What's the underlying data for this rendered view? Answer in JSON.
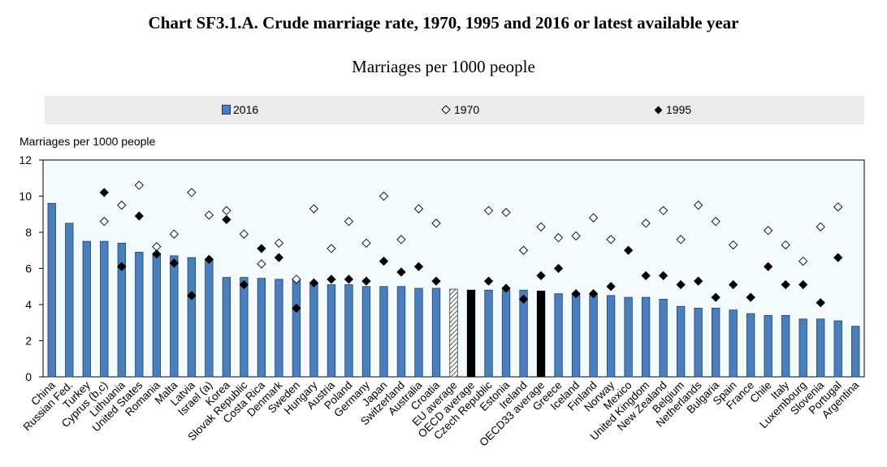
{
  "chart_data": {
    "type": "bar",
    "title": "Chart SF3.1.A. Crude marriage rate, 1970, 1995 and 2016 or latest available year",
    "subtitle": "Marriages per 1000 people",
    "ylabel": "Marriages per 1000 people",
    "ylim": [
      0,
      12
    ],
    "yticks": [
      0,
      2,
      4,
      6,
      8,
      10,
      12
    ],
    "grid": false,
    "legend_position": "top",
    "colors": {
      "bar": "#4a7fbf",
      "bar_border": "#1f3f6a",
      "oecd_bar": "#000000",
      "eu_bar_hatch": "#555555",
      "plot_bg": "#f4fbfd",
      "legend_bg": "#ebebeb"
    },
    "legend": [
      {
        "key": "2016",
        "label": "2016",
        "marker": "bar"
      },
      {
        "key": "1970",
        "label": "1970",
        "marker": "open-diamond"
      },
      {
        "key": "1995",
        "label": "1995",
        "marker": "filled-diamond"
      }
    ],
    "categories": [
      "China",
      "Russian Fed.",
      "Turkey",
      "Cyprus (b,c)",
      "Lithuania",
      "United States",
      "Romania",
      "Malta",
      "Latvia",
      "Israel (a)",
      "Korea",
      "Slovak Republic",
      "Costa Rica",
      "Denmark",
      "Sweden",
      "Hungary",
      "Austria",
      "Poland",
      "Germany",
      "Japan",
      "Switzerland",
      "Australia",
      "Croatia",
      "EU average",
      "OECD average",
      "Czech Republic",
      "Estonia",
      "Ireland",
      "OECD33 average",
      "Greece",
      "Iceland",
      "Finland",
      "Norway",
      "Mexico",
      "United Kingdom",
      "New Zealand",
      "Belgium",
      "Netherlands",
      "Bulgaria",
      "Spain",
      "France",
      "Chile",
      "Italy",
      "Luxembourg",
      "Slovenia",
      "Portugal",
      "Argentina"
    ],
    "bar_style": [
      "normal",
      "normal",
      "normal",
      "normal",
      "normal",
      "normal",
      "normal",
      "normal",
      "normal",
      "normal",
      "normal",
      "normal",
      "normal",
      "normal",
      "normal",
      "normal",
      "normal",
      "normal",
      "normal",
      "normal",
      "normal",
      "normal",
      "normal",
      "hatched",
      "black",
      "normal",
      "normal",
      "normal",
      "black",
      "normal",
      "normal",
      "normal",
      "normal",
      "normal",
      "normal",
      "normal",
      "normal",
      "normal",
      "normal",
      "normal",
      "normal",
      "normal",
      "normal",
      "normal",
      "normal",
      "normal",
      "normal"
    ],
    "series": [
      {
        "name": "2016",
        "type": "bar",
        "values": [
          9.6,
          8.5,
          7.5,
          7.5,
          7.4,
          6.9,
          6.8,
          6.7,
          6.6,
          6.5,
          5.5,
          5.5,
          5.45,
          5.4,
          5.4,
          5.2,
          5.1,
          5.1,
          5.0,
          5.0,
          5.0,
          4.9,
          4.9,
          4.85,
          4.8,
          4.8,
          4.8,
          4.8,
          4.75,
          4.6,
          4.6,
          4.55,
          4.5,
          4.4,
          4.4,
          4.3,
          3.9,
          3.8,
          3.8,
          3.7,
          3.5,
          3.4,
          3.4,
          3.2,
          3.2,
          3.1,
          2.8
        ]
      },
      {
        "name": "1970",
        "type": "open-diamond",
        "values": [
          null,
          null,
          null,
          8.6,
          9.5,
          10.6,
          7.2,
          7.9,
          10.2,
          8.95,
          9.2,
          7.9,
          6.25,
          7.4,
          5.4,
          9.3,
          7.1,
          8.6,
          7.4,
          10.0,
          7.6,
          9.3,
          8.5,
          null,
          null,
          9.2,
          9.1,
          7.0,
          8.3,
          7.7,
          7.8,
          8.8,
          7.6,
          null,
          8.5,
          9.2,
          7.6,
          9.5,
          8.6,
          7.3,
          null,
          8.1,
          7.3,
          6.4,
          8.3,
          9.4,
          null
        ]
      },
      {
        "name": "1995",
        "type": "filled-diamond",
        "values": [
          null,
          null,
          null,
          10.2,
          6.1,
          8.9,
          6.8,
          6.3,
          4.5,
          6.5,
          8.7,
          5.1,
          7.1,
          6.6,
          3.8,
          5.2,
          5.4,
          5.4,
          5.3,
          6.4,
          5.8,
          6.1,
          5.3,
          null,
          null,
          5.3,
          4.9,
          4.3,
          5.6,
          6.0,
          4.6,
          4.6,
          5.0,
          7.0,
          5.6,
          5.6,
          5.1,
          5.3,
          4.4,
          5.1,
          4.4,
          6.1,
          5.1,
          5.1,
          4.1,
          6.6,
          null
        ]
      }
    ]
  }
}
